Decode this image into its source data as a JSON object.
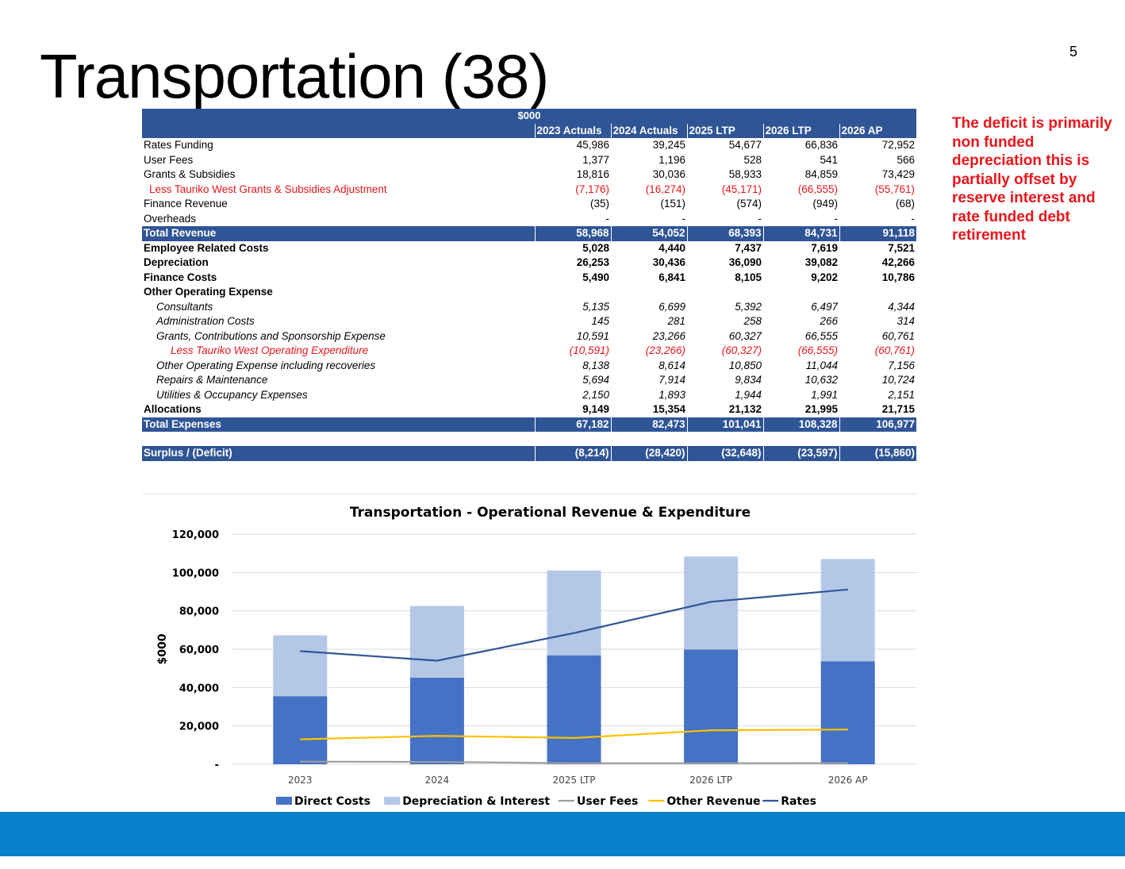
{
  "title": "Transportation (38)",
  "page_number": "5",
  "note": "The deficit is primarily non funded depreciation this is partially offset by reserve interest and rate funded debt retirement",
  "table": {
    "unit_header": "$000",
    "columns": [
      "2023 Actuals",
      "2024 Actuals",
      "2025 LTP",
      "2026 LTP",
      "2026 AP"
    ],
    "rows": [
      {
        "label": "Rates Funding",
        "values": [
          "45,986",
          "39,245",
          "54,677",
          "66,836",
          "72,952"
        ]
      },
      {
        "label": "User Fees",
        "values": [
          "1,377",
          "1,196",
          "528",
          "541",
          "566"
        ]
      },
      {
        "label": "Grants & Subsidies",
        "values": [
          "18,816",
          "30,036",
          "58,933",
          "84,859",
          "73,429"
        ]
      },
      {
        "label": "Less Tauriko West Grants & Subsidies Adjustment",
        "values": [
          "(7,176)",
          "(16,274)",
          "(45,171)",
          "(66,555)",
          "(55,761)"
        ]
      },
      {
        "label": "Finance Revenue",
        "values": [
          "(35)",
          "(151)",
          "(574)",
          "(949)",
          "(68)"
        ]
      },
      {
        "label": "Overheads",
        "values": [
          "-",
          "-",
          "-",
          "-",
          "-"
        ]
      },
      {
        "label": "Total Revenue",
        "values": [
          "58,968",
          "54,052",
          "68,393",
          "84,731",
          "91,118"
        ]
      },
      {
        "label": "Employee Related Costs",
        "values": [
          "5,028",
          "4,440",
          "7,437",
          "7,619",
          "7,521"
        ]
      },
      {
        "label": "Depreciation",
        "values": [
          "26,253",
          "30,436",
          "36,090",
          "39,082",
          "42,266"
        ]
      },
      {
        "label": "Finance Costs",
        "values": [
          "5,490",
          "6,841",
          "8,105",
          "9,202",
          "10,786"
        ]
      },
      {
        "label": "Other Operating  Expense",
        "values": [
          "",
          "",
          "",
          "",
          ""
        ]
      },
      {
        "label": "Consultants",
        "values": [
          "5,135",
          "6,699",
          "5,392",
          "6,497",
          "4,344"
        ]
      },
      {
        "label": "Administration Costs",
        "values": [
          "145",
          "281",
          "258",
          "266",
          "314"
        ]
      },
      {
        "label": "Grants, Contributions and Sponsorship Expense",
        "values": [
          "10,591",
          "23,266",
          "60,327",
          "66,555",
          "60,761"
        ]
      },
      {
        "label": "Less Tauriko West Operating Expenditure",
        "values": [
          "(10,591)",
          "(23,266)",
          "(60,327)",
          "(66,555)",
          "(60,761)"
        ]
      },
      {
        "label": "Other Operating Expense including recoveries",
        "values": [
          "8,138",
          "8,614",
          "10,850",
          "11,044",
          "7,156"
        ]
      },
      {
        "label": "Repairs & Maintenance",
        "values": [
          "5,694",
          "7,914",
          "9,834",
          "10,632",
          "10,724"
        ]
      },
      {
        "label": "Utilities & Occupancy Expenses",
        "values": [
          "2,150",
          "1,893",
          "1,944",
          "1,991",
          "2,151"
        ]
      },
      {
        "label": "Allocations",
        "values": [
          "9,149",
          "15,354",
          "21,132",
          "21,995",
          "21,715"
        ]
      },
      {
        "label": "Total Expenses",
        "values": [
          "67,182",
          "82,473",
          "101,041",
          "108,328",
          "106,977"
        ]
      },
      {
        "label": "Surplus / (Deficit)",
        "values": [
          "(8,214)",
          "(28,420)",
          "(32,648)",
          "(23,597)",
          "(15,860)"
        ]
      }
    ]
  },
  "chart_data": {
    "type": "bar",
    "stacked": true,
    "title": "Transportation  - Operational Revenue & Expenditure",
    "ylabel": "$000",
    "xlabel": "",
    "ylim": [
      0,
      120000
    ],
    "yticks": [
      0,
      20000,
      40000,
      60000,
      80000,
      100000,
      120000
    ],
    "ytick_labels": [
      "-",
      "20,000",
      "40,000",
      "60,000",
      "80,000",
      "100,000",
      "120,000"
    ],
    "grid": true,
    "legend_position": "bottom",
    "categories": [
      "2023",
      "2024",
      "2025 LTP",
      "2026 LTP",
      "2026 AP"
    ],
    "series": [
      {
        "name": "Direct Costs",
        "kind": "bar",
        "color": "#4472c4",
        "values": [
          35500,
          45200,
          56800,
          59800,
          53700
        ]
      },
      {
        "name": "Depreciation & Interest",
        "kind": "bar",
        "color": "#b4c7e7",
        "values": [
          31700,
          37300,
          44200,
          48500,
          53300
        ]
      },
      {
        "name": "User Fees",
        "kind": "line",
        "color": "#9e9e9e",
        "values": [
          1377,
          1196,
          528,
          541,
          566
        ]
      },
      {
        "name": "Other Revenue",
        "kind": "line",
        "color": "#ffc000",
        "values": [
          13000,
          14800,
          13700,
          17700,
          18100
        ]
      },
      {
        "name": "Rates",
        "kind": "line",
        "color": "#2f5597",
        "values": [
          59000,
          54000,
          68400,
          84700,
          91100
        ]
      }
    ]
  }
}
